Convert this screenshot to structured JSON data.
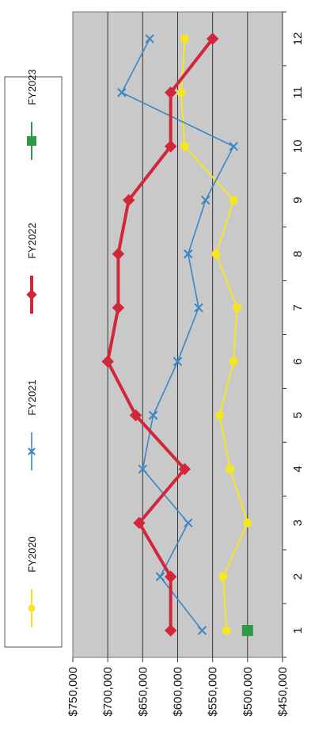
{
  "chart_data": {
    "type": "line",
    "orientation": "rotated-90",
    "x": [
      1,
      2,
      3,
      4,
      5,
      6,
      7,
      8,
      9,
      10,
      11,
      12
    ],
    "x_tick_labels": [
      "1",
      "2",
      "3",
      "4",
      "5",
      "6",
      "7",
      "8",
      "9",
      "10",
      "11",
      "12"
    ],
    "ylim": [
      450000,
      750000
    ],
    "y_tick_labels": [
      "$450,000",
      "$500,000",
      "$550,000",
      "$600,000",
      "$650,000",
      "$700,000",
      "$750,000"
    ],
    "y_tick_values": [
      450000,
      500000,
      550000,
      600000,
      650000,
      700000,
      750000
    ],
    "grid": true,
    "legend_position": "top",
    "series": [
      {
        "name": "FY2020",
        "color": "#f5e623",
        "marker": "circle",
        "values": [
          530000,
          535000,
          500000,
          525000,
          540000,
          520000,
          515000,
          545000,
          520000,
          590000,
          595000,
          590000
        ]
      },
      {
        "name": "FY2021",
        "color": "#3a86c8",
        "marker": "x",
        "values": [
          565000,
          625000,
          585000,
          650000,
          635000,
          600000,
          570000,
          585000,
          560000,
          520000,
          680000,
          640000
        ]
      },
      {
        "name": "FY2022",
        "color": "#d2273a",
        "marker": "diamond",
        "values": [
          610000,
          610000,
          655000,
          590000,
          660000,
          700000,
          685000,
          685000,
          670000,
          610000,
          610000,
          550000
        ]
      },
      {
        "name": "FY2023",
        "color": "#2f9a46",
        "marker": "square",
        "values": [
          500000,
          null,
          null,
          null,
          null,
          null,
          null,
          null,
          null,
          null,
          null,
          null
        ]
      }
    ]
  }
}
